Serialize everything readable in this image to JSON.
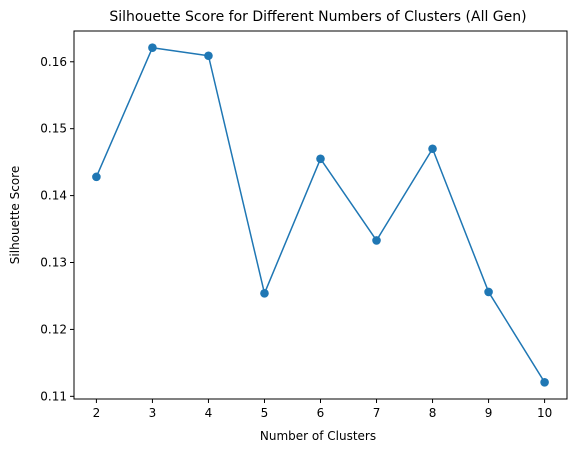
{
  "chart_data": {
    "type": "line",
    "title": "Silhouette Score for Different Numbers of Clusters (All Gen)",
    "xlabel": "Number of Clusters",
    "ylabel": "Silhouette Score",
    "x": [
      2,
      3,
      4,
      5,
      6,
      7,
      8,
      9,
      10
    ],
    "series": [
      {
        "values": [
          0.1428,
          0.1621,
          0.1609,
          0.1254,
          0.1455,
          0.1333,
          0.147,
          0.1256,
          0.1121
        ],
        "color": "#1f77b4",
        "marker": "circle"
      }
    ],
    "xticks": [
      "2",
      "3",
      "4",
      "5",
      "6",
      "7",
      "8",
      "9",
      "10"
    ],
    "yticks": [
      "0.11",
      "0.12",
      "0.13",
      "0.14",
      "0.15",
      "0.16"
    ],
    "xlim": [
      1.6,
      10.4
    ],
    "ylim": [
      0.1096,
      0.1646
    ],
    "grid": false,
    "legend": "none"
  }
}
